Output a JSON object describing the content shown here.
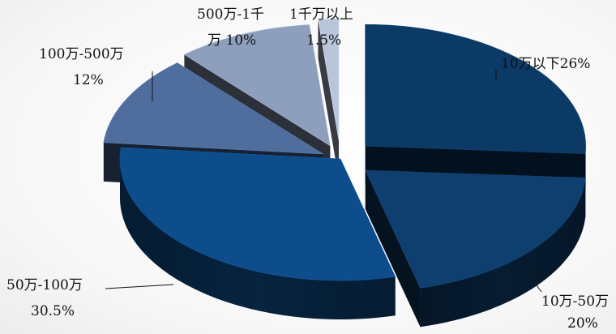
{
  "chart_data": {
    "type": "pie",
    "style": "3d-exploded",
    "title": "",
    "slices": [
      {
        "category": "10万以下",
        "value": 26,
        "label_lines": [
          "10万以下26%"
        ],
        "color": "#0b3a66"
      },
      {
        "category": "10万-50万",
        "value": 20,
        "label_lines": [
          "10万-50万",
          "20%"
        ],
        "color": "#0f3f6e"
      },
      {
        "category": "50万-100万",
        "value": 30.5,
        "label_lines": [
          "50万-100万",
          "30.5%"
        ],
        "color": "#0e4d8c"
      },
      {
        "category": "100万-500万",
        "value": 12,
        "label_lines": [
          "100万-500万",
          "12%"
        ],
        "color": "#4f6e9e"
      },
      {
        "category": "500万-1千万",
        "value": 10,
        "label_lines": [
          "500万-1千",
          "万  10%"
        ],
        "color": "#8e9fbd"
      },
      {
        "category": "1千万以上",
        "value": 1.5,
        "label_lines": [
          "1千万以上",
          "1.5%"
        ],
        "color": "#b9c6da"
      }
    ]
  }
}
